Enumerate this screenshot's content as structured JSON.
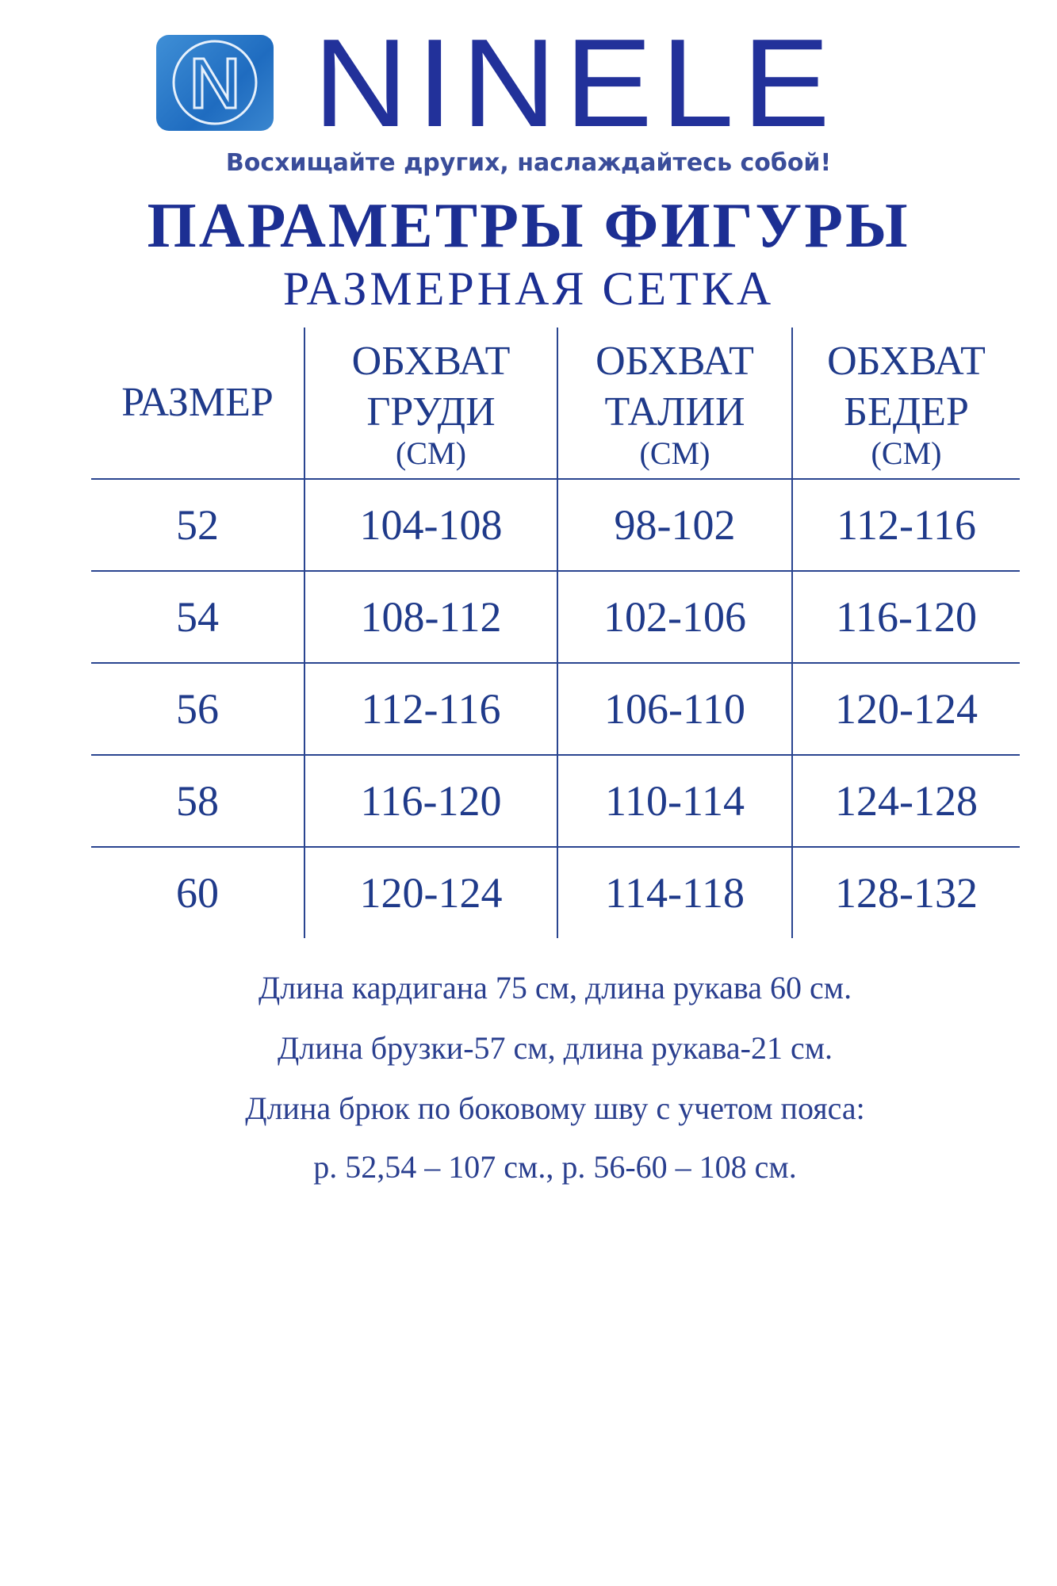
{
  "brand": {
    "name": "NINELE",
    "tagline": "Восхищайте других, наслаждайтесь собой!",
    "logo_color": "#2f7fcc",
    "text_color": "#22319a"
  },
  "title": "ПАРАМЕТРЫ ФИГУРЫ",
  "subtitle": "РАЗМЕРНАЯ СЕТКА",
  "table": {
    "headers": [
      {
        "line1": "РАЗМЕР",
        "line2": "",
        "unit": ""
      },
      {
        "line1": "ОБХВАТ",
        "line2": "ГРУДИ",
        "unit": "(СМ)"
      },
      {
        "line1": "ОБХВАТ",
        "line2": "ТАЛИИ",
        "unit": "(СМ)"
      },
      {
        "line1": "ОБХВАТ",
        "line2": "БЕДЕР",
        "unit": "(СМ)"
      }
    ],
    "rows": [
      [
        "52",
        "104-108",
        "98-102",
        "112-116"
      ],
      [
        "54",
        "108-112",
        "102-106",
        "116-120"
      ],
      [
        "56",
        "112-116",
        "106-110",
        "120-124"
      ],
      [
        "58",
        "116-120",
        "110-114",
        "124-128"
      ],
      [
        "60",
        "120-124",
        "114-118",
        "128-132"
      ]
    ]
  },
  "notes": [
    "Длина кардигана 75 см, длина рукава 60 см.",
    "Длина брузки-57 см, длина рукава-21 см.",
    "Длина брюк по боковому шву с учетом пояса:",
    "р. 52,54 – 107 см., р. 56-60 – 108 см."
  ]
}
